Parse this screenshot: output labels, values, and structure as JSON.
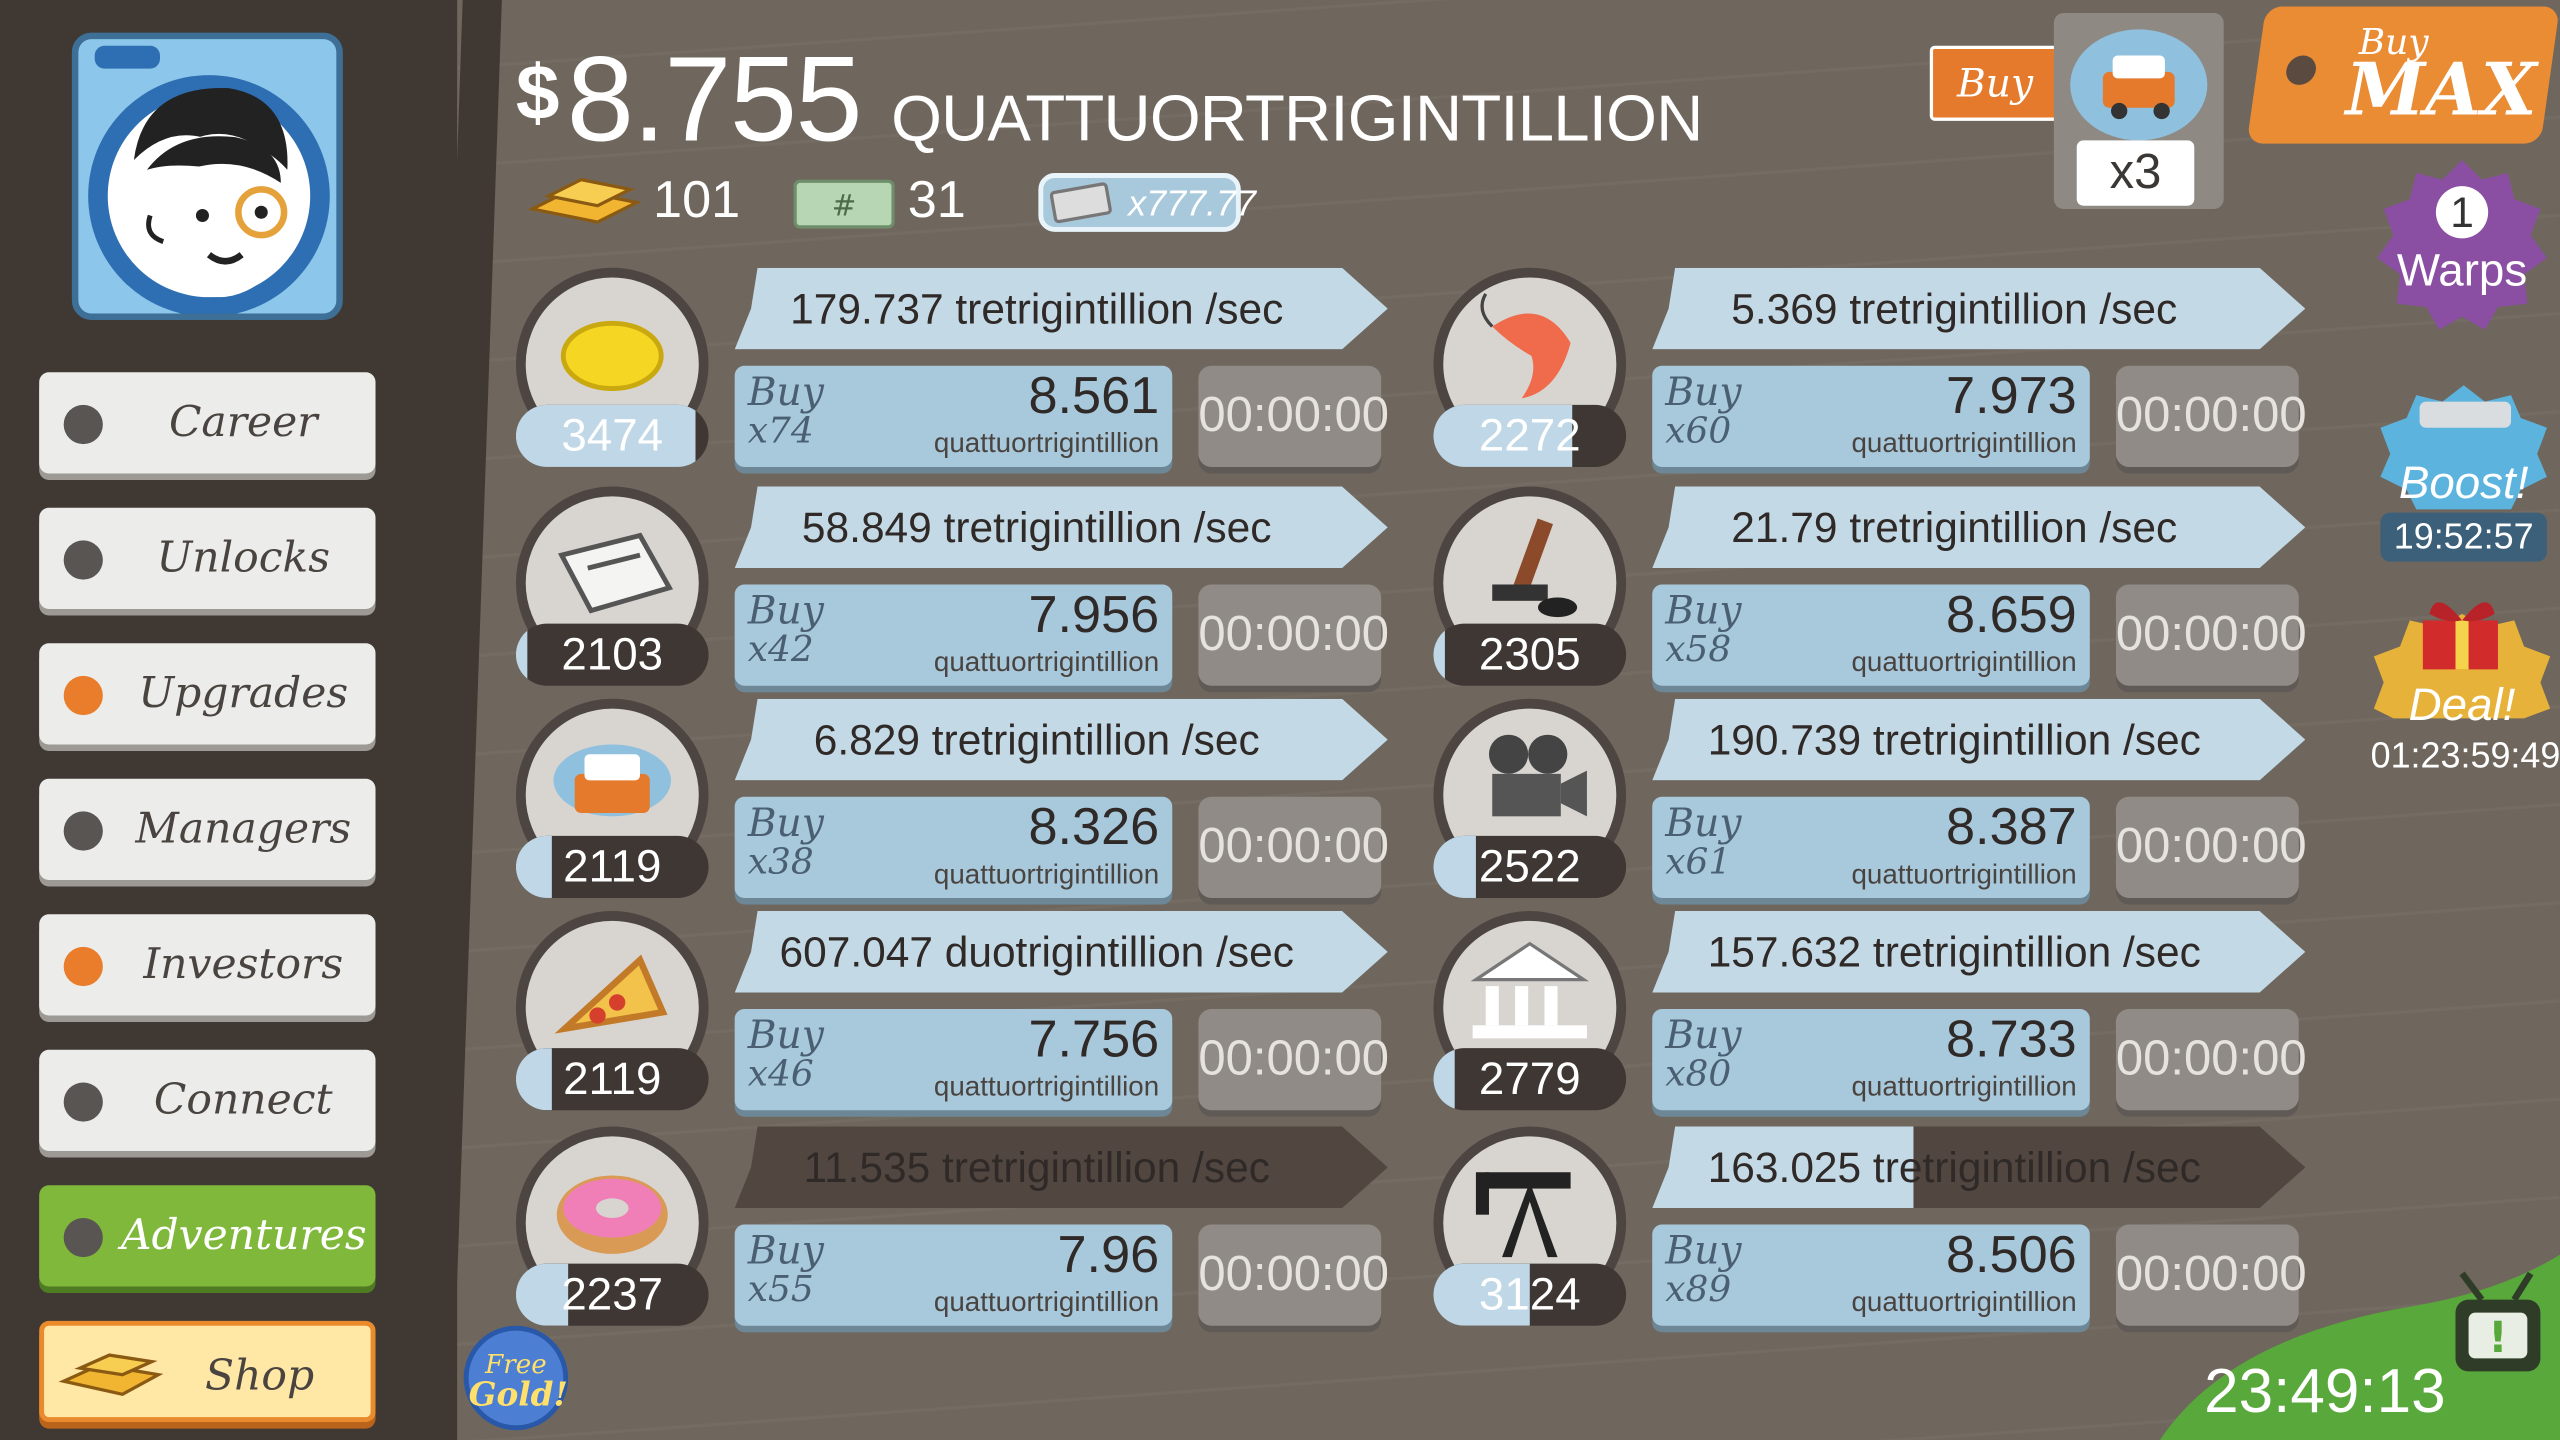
{
  "money": {
    "currency": "$",
    "amount": "8.755",
    "unit": "QUATTUORTRIGINTILLION"
  },
  "resources": {
    "gold": "101",
    "tickets": "31",
    "multiplier": "x777.77"
  },
  "sidebar": {
    "items": [
      {
        "label": "Career",
        "dot": "#595552"
      },
      {
        "label": "Unlocks",
        "dot": "#595552"
      },
      {
        "label": "Upgrades",
        "dot": "#e97d2c"
      },
      {
        "label": "Managers",
        "dot": "#595552"
      },
      {
        "label": "Investors",
        "dot": "#e97d2c"
      },
      {
        "label": "Connect",
        "dot": "#595552"
      },
      {
        "label": "Adventures",
        "dot": "#595552"
      },
      {
        "label": "Shop",
        "dot": ""
      }
    ]
  },
  "buy_control": {
    "buy_label": "Buy",
    "multiplier": "x3",
    "buy_max_top": "Buy",
    "buy_max_bottom": "MAX"
  },
  "right_panel": {
    "warps_count": "1",
    "warps_label": "Warps",
    "boost_label": "Boost!",
    "boost_timer": "19:52:57",
    "deal_label": "Deal!",
    "deal_timer": "01:23:59:49"
  },
  "businesses": [
    {
      "icon": "lemon-icon",
      "owned": "3474",
      "progress": 0.93,
      "rate": "179.737 tretrigintillion /sec",
      "rate_progress": 1.0,
      "buy_qty": "x74",
      "cost": "8.561",
      "cost_unit": "quattuortrigintillion",
      "timer": "00:00:00"
    },
    {
      "icon": "shrimp-icon",
      "owned": "2272",
      "progress": 0.72,
      "rate": "5.369 tretrigintillion /sec",
      "rate_progress": 1.0,
      "buy_qty": "x60",
      "cost": "7.973",
      "cost_unit": "quattuortrigintillion",
      "timer": "00:00:00"
    },
    {
      "icon": "newspaper-icon",
      "owned": "2103",
      "progress": 0.06,
      "rate": "58.849 tretrigintillion /sec",
      "rate_progress": 1.0,
      "buy_qty": "x42",
      "cost": "7.956",
      "cost_unit": "quattuortrigintillion",
      "timer": "00:00:00"
    },
    {
      "icon": "hockey-stick-icon",
      "owned": "2305",
      "progress": 0.06,
      "rate": "21.79 tretrigintillion /sec",
      "rate_progress": 1.0,
      "buy_qty": "x58",
      "cost": "8.659",
      "cost_unit": "quattuortrigintillion",
      "timer": "00:00:00"
    },
    {
      "icon": "car-wash-icon",
      "owned": "2119",
      "progress": 0.19,
      "rate": "6.829 tretrigintillion /sec",
      "rate_progress": 1.0,
      "buy_qty": "x38",
      "cost": "8.326",
      "cost_unit": "quattuortrigintillion",
      "timer": "00:00:00"
    },
    {
      "icon": "movie-camera-icon",
      "owned": "2522",
      "progress": 0.22,
      "rate": "190.739 tretrigintillion /sec",
      "rate_progress": 1.0,
      "buy_qty": "x61",
      "cost": "8.387",
      "cost_unit": "quattuortrigintillion",
      "timer": "00:00:00"
    },
    {
      "icon": "pizza-icon",
      "owned": "2119",
      "progress": 0.19,
      "rate": "607.047 duotrigintillion /sec",
      "rate_progress": 1.0,
      "buy_qty": "x46",
      "cost": "7.756",
      "cost_unit": "quattuortrigintillion",
      "timer": "00:00:00"
    },
    {
      "icon": "bank-icon",
      "owned": "2779",
      "progress": 0.11,
      "rate": "157.632 tretrigintillion /sec",
      "rate_progress": 1.0,
      "buy_qty": "x80",
      "cost": "8.733",
      "cost_unit": "quattuortrigintillion",
      "timer": "00:00:00"
    },
    {
      "icon": "donut-icon",
      "owned": "2237",
      "progress": 0.27,
      "rate": "11.535 tretrigintillion /sec",
      "rate_progress": 0.0,
      "buy_qty": "x55",
      "cost": "7.96",
      "cost_unit": "quattuortrigintillion",
      "timer": "00:00:00"
    },
    {
      "icon": "oil-rig-icon",
      "owned": "3124",
      "progress": 0.5,
      "rate": "163.025 tretrigintillion /sec",
      "rate_progress": 0.4,
      "buy_qty": "x89",
      "cost": "8.506",
      "cost_unit": "quattuortrigintillion",
      "timer": "00:00:00"
    }
  ],
  "free_gold": {
    "line1": "Free",
    "line2": "Gold!"
  },
  "clock": "23:49:13",
  "colors": {
    "sidebar": "#403833",
    "accent_orange": "#e98c34",
    "accent_green": "#7fb83b",
    "bar_blue": "#bfd7e6",
    "buy_blue": "#a8c8dc"
  }
}
